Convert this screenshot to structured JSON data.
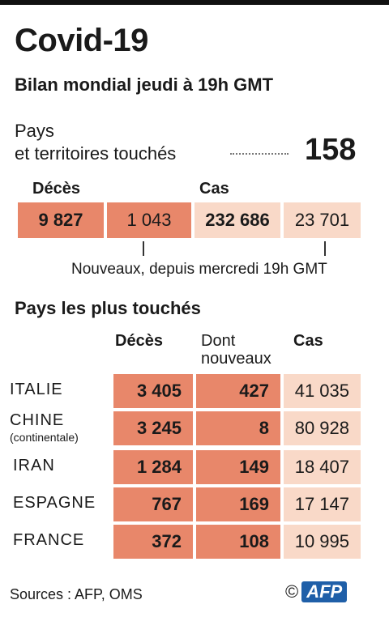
{
  "header": {
    "title": "Covid-19",
    "subtitle": "Bilan mondial jeudi à 19h GMT"
  },
  "countries_affected": {
    "label_line1": "Pays",
    "label_line2": "et territoires touchés",
    "value": "158"
  },
  "global": {
    "deaths_label": "Décès",
    "cases_label": "Cas",
    "deaths_total": "9 827",
    "deaths_new": "1 043",
    "cases_total": "232 686",
    "cases_new": "23 701",
    "note": "Nouveaux, depuis mercredi 19h GMT"
  },
  "table": {
    "section_title": "Pays les plus touchés",
    "col_deaths": "Décès",
    "col_new_line1": "Dont",
    "col_new_line2": "nouveaux",
    "col_cases": "Cas",
    "rows": [
      {
        "country": "ITALIE",
        "sub": "",
        "deaths": "3 405",
        "new": "427",
        "cases": "41 035"
      },
      {
        "country": "CHINE",
        "sub": "(continentale)",
        "deaths": "3 245",
        "new": "8",
        "cases": "80 928"
      },
      {
        "country": "IRAN",
        "sub": "",
        "deaths": "1 284",
        "new": "149",
        "cases": "18 407"
      },
      {
        "country": "ESPAGNE",
        "sub": "",
        "deaths": "767",
        "new": "169",
        "cases": "17 147"
      },
      {
        "country": "FRANCE",
        "sub": "",
        "deaths": "372",
        "new": "108",
        "cases": "10 995"
      }
    ]
  },
  "footer": {
    "sources": "Sources : AFP, OMS",
    "copyright": "©",
    "logo": "AFP"
  },
  "chart_data": {
    "type": "table",
    "title": "Covid-19",
    "subtitle": "Bilan mondial jeudi à 19h GMT",
    "global": {
      "countries": 158,
      "deaths": 9827,
      "new_deaths": 1043,
      "cases": 232686,
      "new_cases": 23701
    },
    "columns": [
      "Décès",
      "Dont nouveaux",
      "Cas"
    ],
    "categories": [
      "ITALIE",
      "CHINE",
      "IRAN",
      "ESPAGNE",
      "FRANCE"
    ],
    "series": [
      {
        "name": "Décès",
        "values": [
          3405,
          3245,
          1284,
          767,
          372
        ]
      },
      {
        "name": "Dont nouveaux",
        "values": [
          427,
          8,
          149,
          169,
          108
        ]
      },
      {
        "name": "Cas",
        "values": [
          41035,
          80928,
          18407,
          17147,
          10995
        ]
      }
    ]
  }
}
